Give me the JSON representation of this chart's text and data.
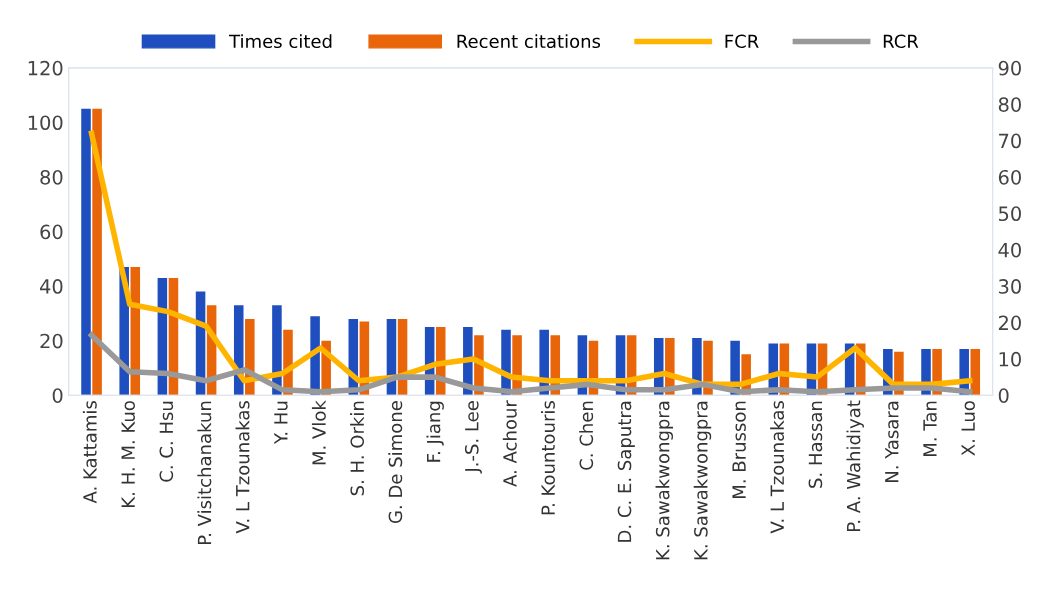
{
  "chart_data": {
    "type": "bar",
    "categories": [
      "A. Kattamis",
      "K. H. M. Kuo",
      "C. C. Hsu",
      "P. Visitchanakun",
      "V. L Tzounakas",
      "Y. Hu",
      "M. Vlok",
      "S. H. Orkin",
      "G. De Simone",
      "F. Jiang",
      "J.-S. Lee",
      "A. Achour",
      "P. Kountouris",
      "C. Chen",
      "D. C. E. Saputra",
      "K. Sawakwongpra",
      "K. Sawakwongpra",
      "M. Brusson",
      "V. L Tzounakas",
      "S. Hassan",
      "P. A. Wahidiyat",
      "N. Yasara",
      "M. Tan",
      "X. Luo"
    ],
    "series": [
      {
        "name": "Times cited",
        "color": "#1f4fbf",
        "values": [
          105,
          47,
          43,
          38,
          33,
          33,
          29,
          28,
          28,
          25,
          25,
          24,
          24,
          22,
          22,
          21,
          21,
          20,
          19,
          19,
          19,
          17,
          17,
          17
        ]
      },
      {
        "name": "Recent citations",
        "color": "#e8650a",
        "values": [
          105,
          47,
          43,
          33,
          28,
          24,
          20,
          27,
          28,
          25,
          22,
          22,
          22,
          20,
          22,
          21,
          20,
          15,
          19,
          19,
          19,
          16,
          17,
          17
        ]
      },
      {
        "name": "FCR",
        "type": "line",
        "axis": "y2",
        "color": "#ffb400",
        "values": [
          72,
          25,
          23,
          19,
          4,
          6,
          13,
          4,
          5,
          8.5,
          10,
          5,
          4,
          4,
          4,
          6,
          3,
          3,
          6,
          5,
          13,
          3,
          3,
          4
        ]
      },
      {
        "name": "RCR",
        "type": "line",
        "axis": "y2",
        "color": "#999999",
        "values": [
          16.5,
          6.5,
          6,
          4,
          7,
          1.5,
          1,
          1.5,
          5,
          5,
          2,
          1,
          2,
          3,
          1.5,
          1.5,
          3,
          1,
          1.5,
          1,
          1.5,
          2,
          2,
          1
        ]
      }
    ],
    "ylim": [
      0,
      120
    ],
    "yticks": [
      0,
      20,
      40,
      60,
      80,
      100,
      120
    ],
    "y2lim": [
      0,
      90
    ],
    "y2ticks": [
      0,
      10,
      20,
      30,
      40,
      50,
      60,
      70,
      80,
      90
    ],
    "grid": false,
    "legend": "top",
    "marker": "none",
    "line_style": "solid"
  }
}
